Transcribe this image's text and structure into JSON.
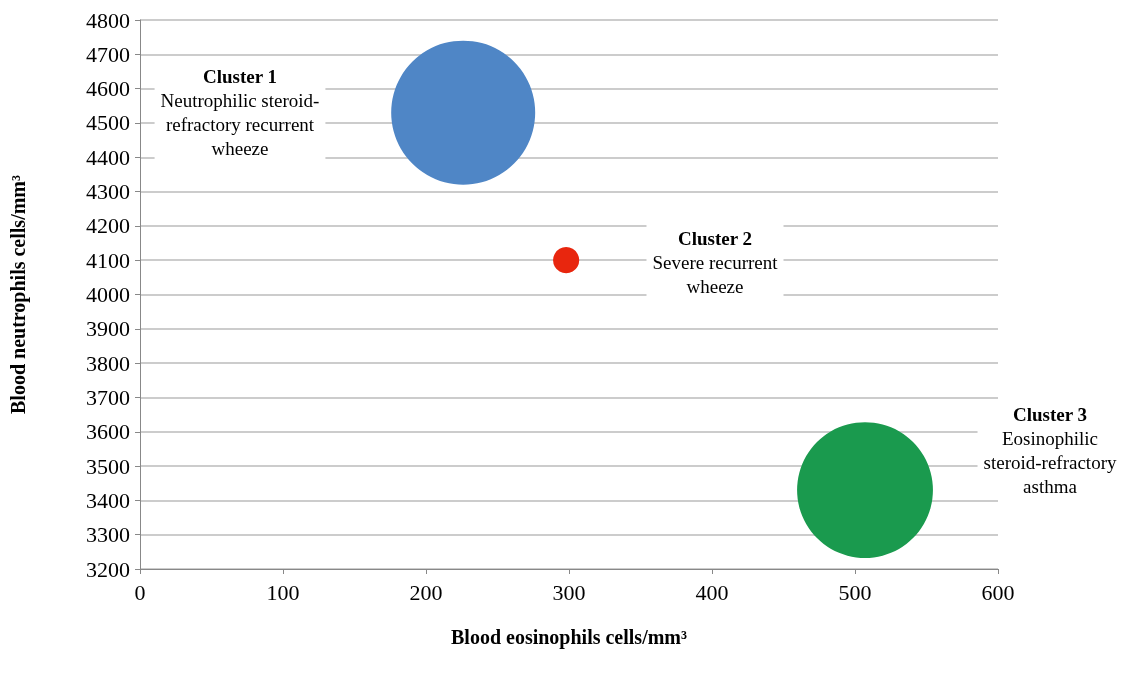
{
  "chart_data": {
    "type": "bubble",
    "xlabel": "Blood eosinophils cells/mm³",
    "ylabel": "Blood neutrophils cells/mm³",
    "series": [
      {
        "color": "#4f86c6",
        "x": [
          226
        ],
        "values": [
          4530
        ],
        "sizes": [
          1
        ]
      },
      {
        "color": "#e8260e",
        "x": [
          298
        ],
        "values": [
          4100
        ],
        "sizes": [
          0.033
        ]
      },
      {
        "color": "#1a9a4e",
        "x": [
          507
        ],
        "values": [
          3430
        ],
        "sizes": [
          0.89
        ]
      }
    ],
    "annotations": [
      "Cluster 1\nNeutrophilic steroid-\nrefractory recurrent\nwheeze",
      "Cluster 2\nSevere recurrent\nwheeze",
      "Cluster 3\nEosinophilic\nsteroid-refractory\nasthma"
    ],
    "xlim": [
      0,
      600
    ],
    "xticks": [
      0,
      100,
      200,
      300,
      400,
      500,
      600
    ],
    "ylim": [
      3200,
      4800
    ],
    "yticks": [
      3200,
      3300,
      3400,
      3500,
      3600,
      3700,
      3800,
      3900,
      4000,
      4100,
      4200,
      4300,
      4400,
      4500,
      4600,
      4700,
      4800
    ],
    "grid": "y"
  }
}
